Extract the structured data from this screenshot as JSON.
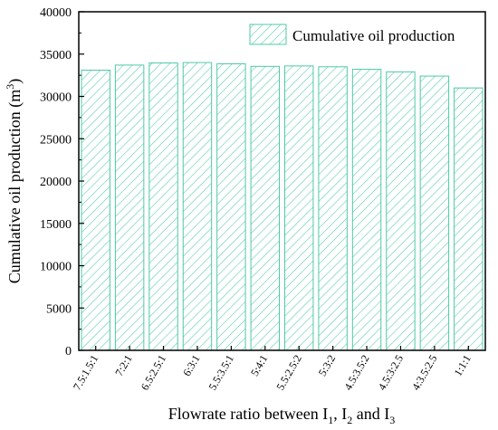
{
  "chart_data": {
    "type": "bar",
    "categories": [
      "7.5:1.5:1",
      "7:2:1",
      "6.5:2.5:1",
      "6:3:1",
      "5.5:3.5:1",
      "5:4:1",
      "5.5:2.5:2",
      "5:3:2",
      "4.5:3.5:2",
      "4.5:3:2.5",
      "4:3.5:2.5",
      "1:1:1"
    ],
    "series": [
      {
        "name": "Cumulative oil production",
        "values": [
          33100,
          33700,
          33950,
          34000,
          33850,
          33550,
          33600,
          33500,
          33200,
          32900,
          32400,
          31000
        ]
      }
    ],
    "ylim": [
      0,
      40000
    ],
    "yticks": [
      0,
      5000,
      10000,
      15000,
      20000,
      25000,
      30000,
      35000,
      40000
    ],
    "ylabel": "Cumulative oil production (m3)",
    "xlabel": "Flowrate ratio between I1, I2 and I3",
    "legend_position": "top-right",
    "colors": {
      "bar_stroke": "#4fc9a8",
      "hatch": "#4fc9a8",
      "axis": "#000000"
    }
  }
}
